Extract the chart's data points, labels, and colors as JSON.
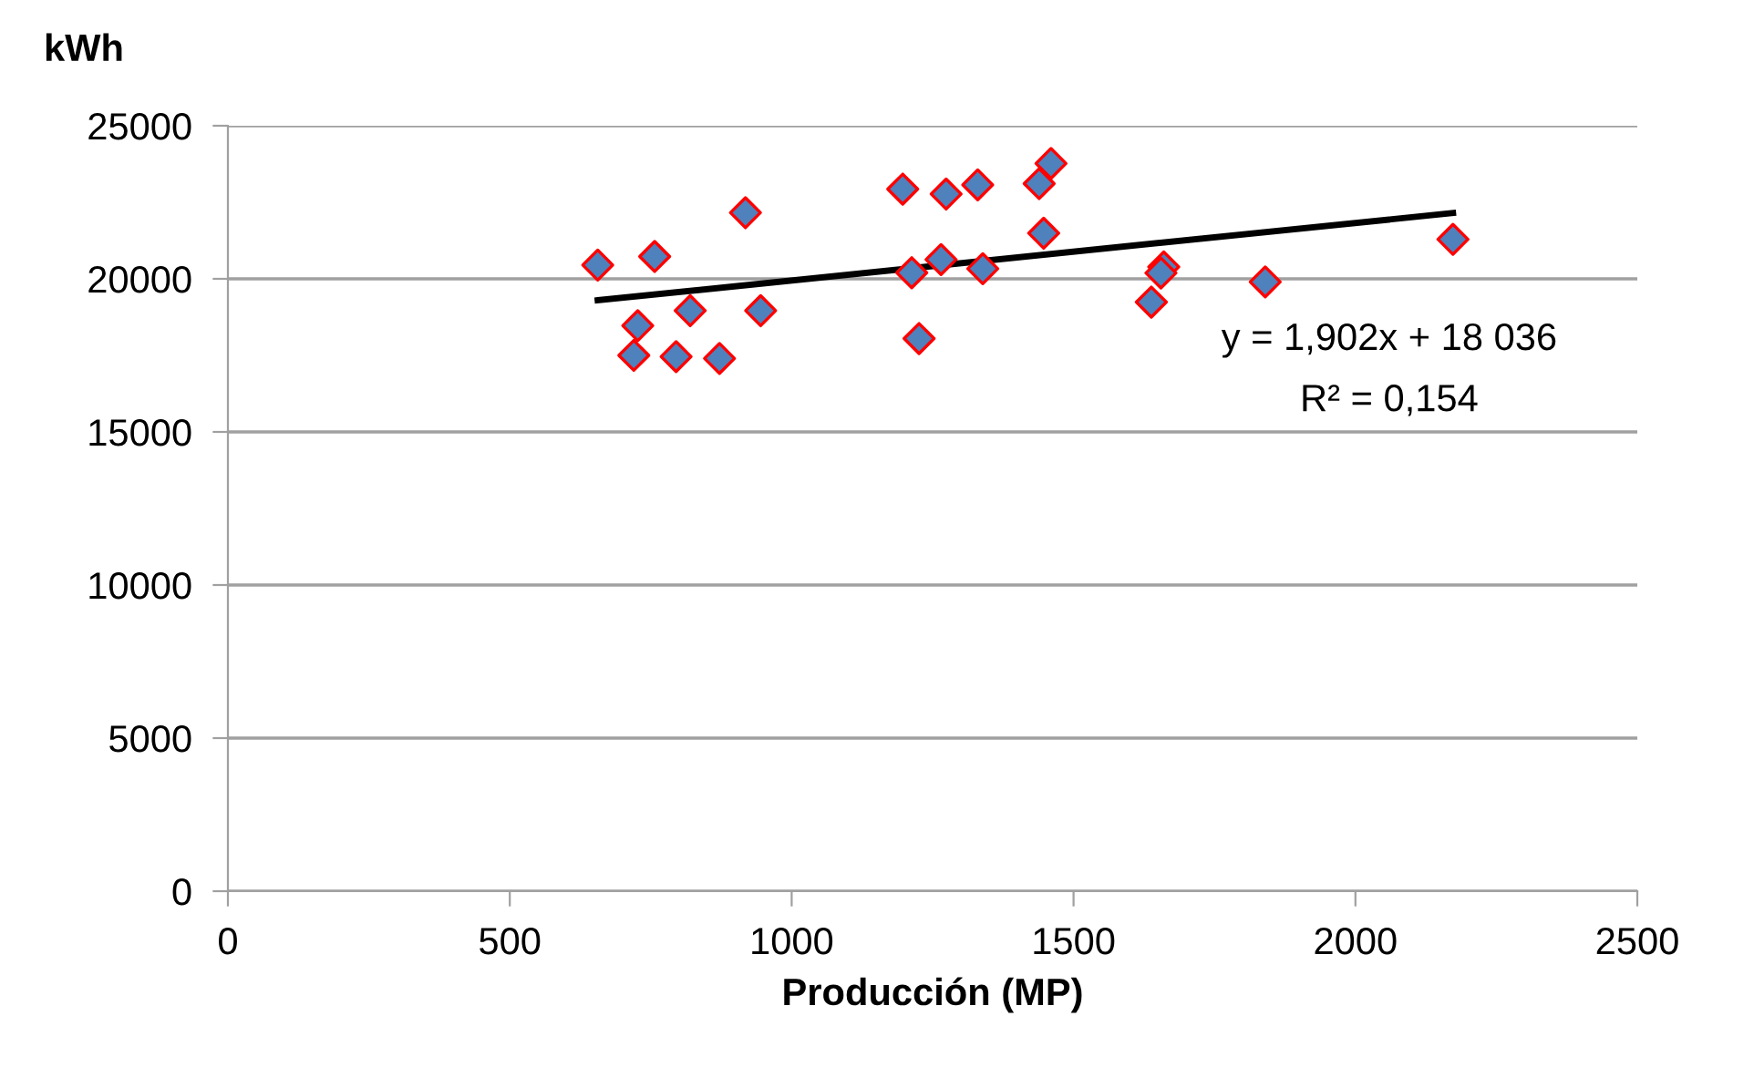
{
  "chart_data": {
    "type": "scatter",
    "xlabel": "Producción (MP)",
    "ylabel": "kWh",
    "xlim": [
      0,
      2500
    ],
    "ylim": [
      0,
      25000
    ],
    "xticks": [
      0,
      500,
      1000,
      1500,
      2000,
      2500
    ],
    "yticks": [
      0,
      5000,
      10000,
      15000,
      20000,
      25000
    ],
    "grid": "y",
    "marker": "diamond",
    "series": [
      {
        "color": "#4f81bd",
        "x": [
          656,
          757,
          727,
          820,
          720,
          795,
          872,
          945,
          918,
          1197,
          1274,
          1330,
          1439,
          1460,
          1447,
          1213,
          1265,
          1339,
          1226,
          1638,
          1660,
          1655,
          1840,
          2173
        ],
        "values": [
          20450,
          20730,
          18470,
          18960,
          17500,
          17460,
          17400,
          18960,
          22160,
          22930,
          22770,
          23070,
          23110,
          23770,
          21490,
          20200,
          20630,
          20330,
          18050,
          19240,
          20390,
          20190,
          19900,
          21290
        ]
      },
      {
        "type": "line",
        "color": "#000000",
        "marker": "none",
        "x": [
          656,
          2173
        ],
        "values": [
          19300,
          22150
        ]
      }
    ],
    "annotations": [
      "y = 1,902x + 18 036",
      "R² = 0,154"
    ]
  }
}
